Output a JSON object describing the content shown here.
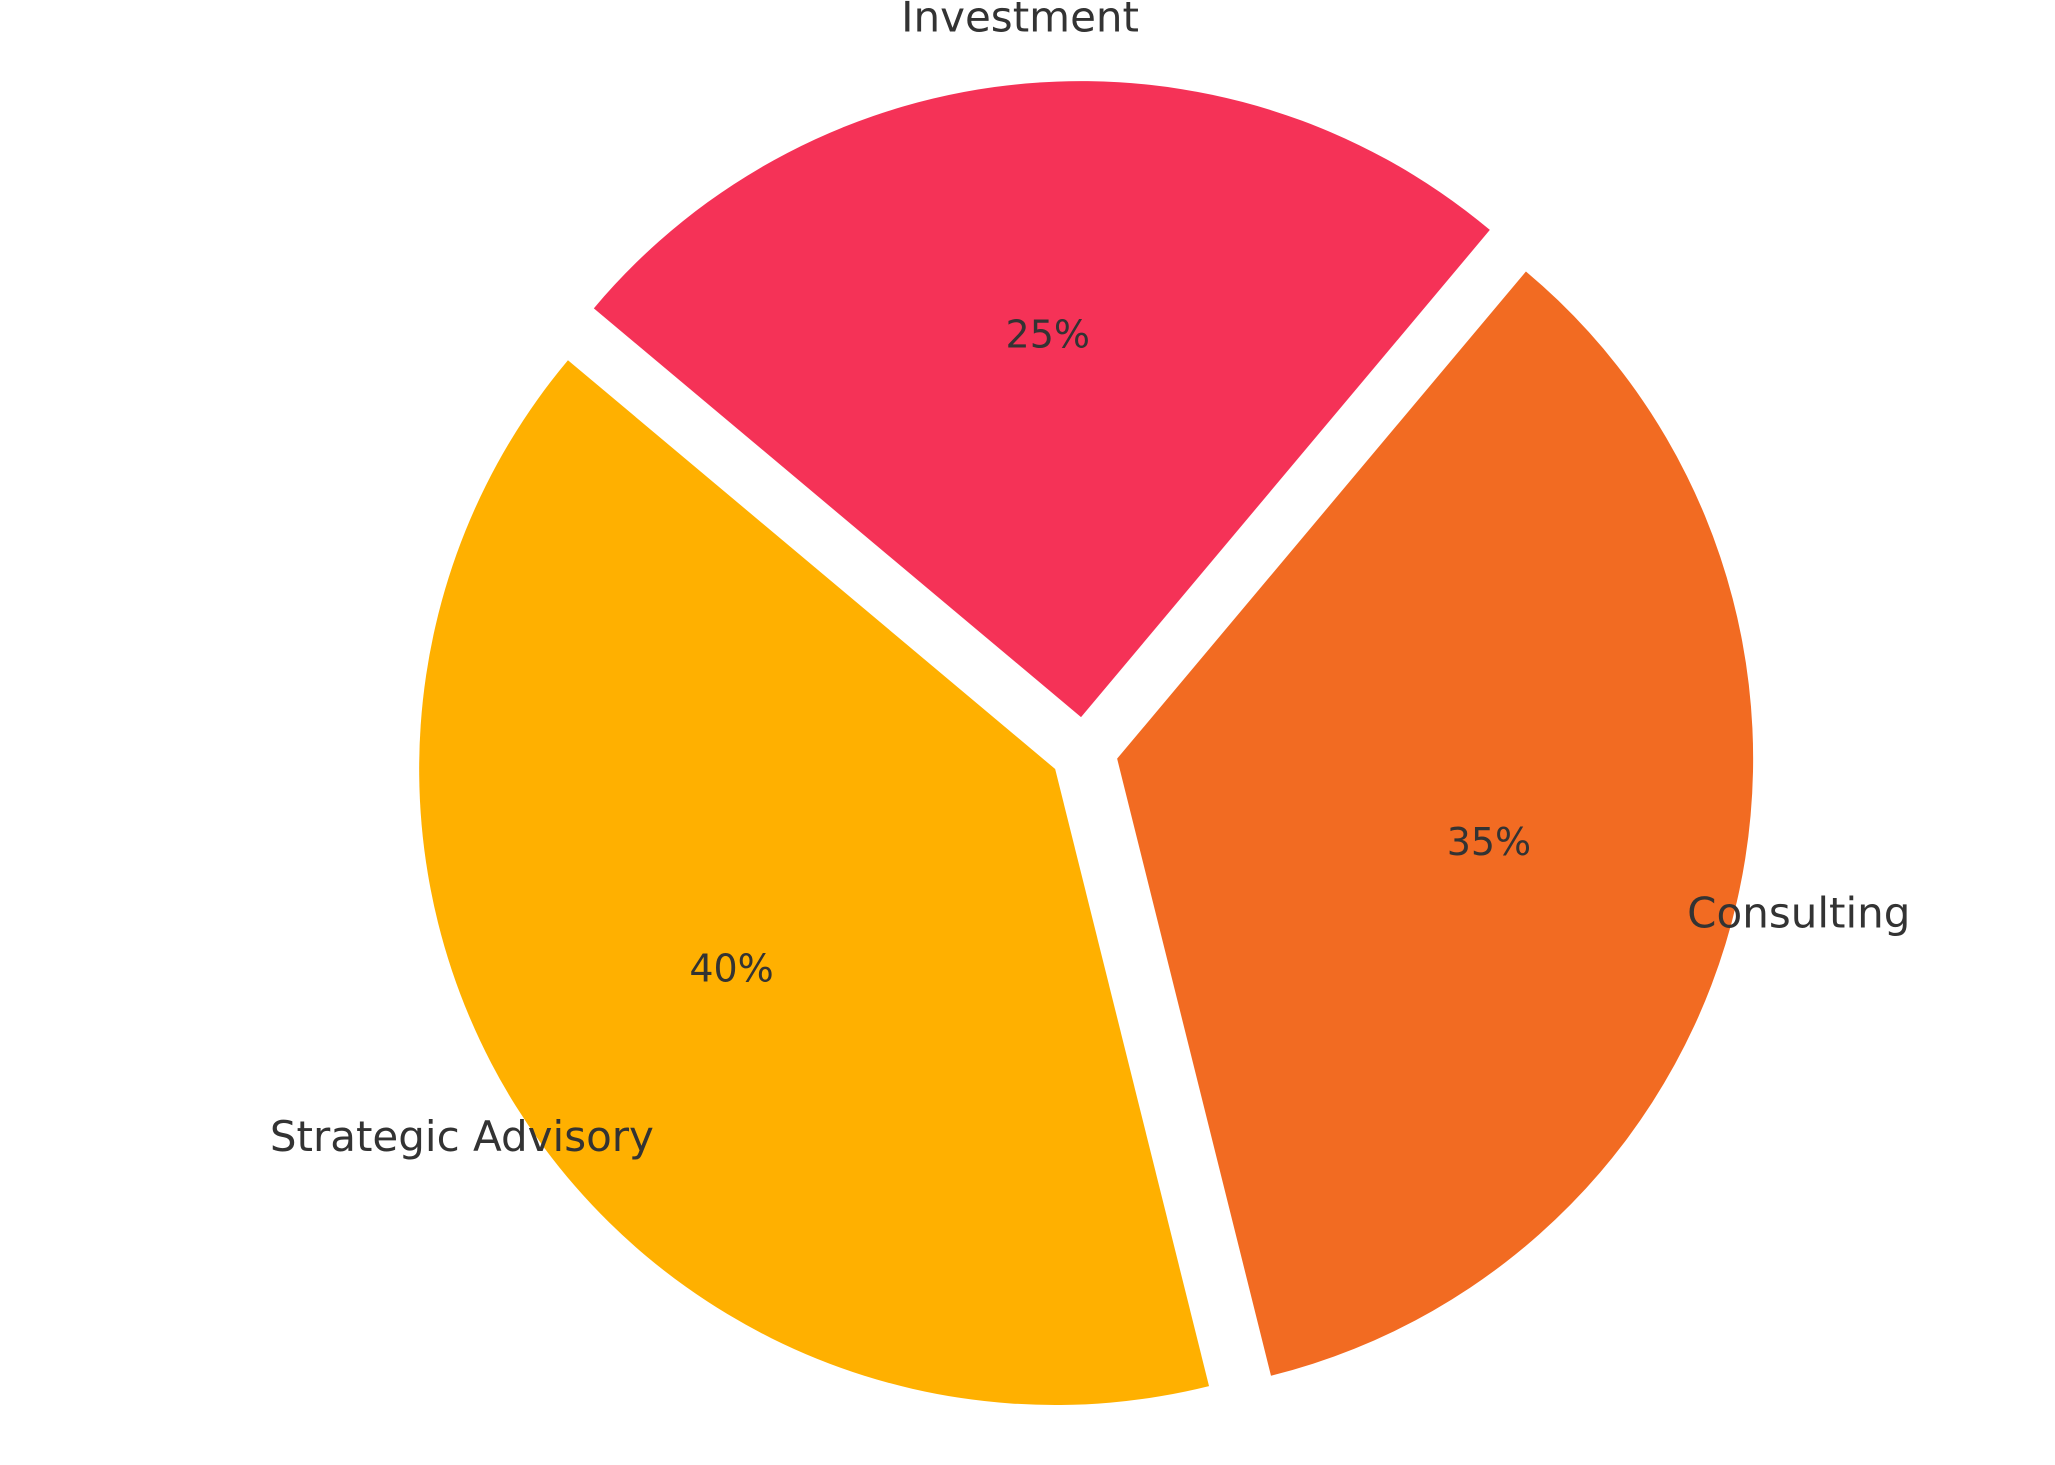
{
  "chart_data": {
    "type": "pie",
    "categories": [
      "Strategic Advisory",
      "Consulting",
      "Investment"
    ],
    "values": [
      40,
      35,
      25
    ],
    "value_labels": [
      "40%",
      "35%",
      "25%"
    ],
    "colors": [
      "#FFB000",
      "#F26B22",
      "#F53257"
    ]
  }
}
